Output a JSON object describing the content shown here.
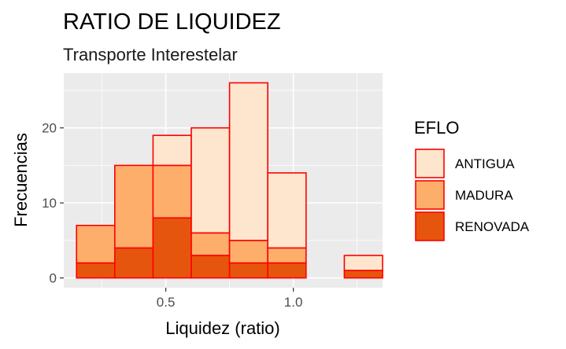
{
  "chart_data": {
    "type": "bar",
    "title": "RATIO DE LIQUIDEZ",
    "subtitle": "Transporte Interestelar",
    "xlabel": "Liquidez (ratio)",
    "ylabel": "Frecuencias",
    "xlim": [
      0.1,
      1.35
    ],
    "ylim": [
      -1.3,
      27.3
    ],
    "x_ticks": [
      0.5,
      1.0
    ],
    "x_tick_labels": [
      "0.5",
      "1.0"
    ],
    "y_ticks": [
      0,
      10,
      20
    ],
    "y_tick_labels": [
      "0",
      "10",
      "20"
    ],
    "grid": true,
    "stacked": true,
    "bin_edges": [
      0.15,
      0.3,
      0.45,
      0.6,
      0.75,
      0.9,
      1.05,
      1.2,
      1.35
    ],
    "bar_outline_color": "#ff0000",
    "series": [
      {
        "name": "RENOVADA",
        "color": "#e6550d",
        "values": [
          2,
          4,
          8,
          3,
          2,
          2,
          0,
          1
        ]
      },
      {
        "name": "MADURA",
        "color": "#fdae6b",
        "values": [
          5,
          11,
          7,
          3,
          3,
          2,
          0,
          0
        ]
      },
      {
        "name": "ANTIGUA",
        "color": "#fee6ce",
        "values": [
          0,
          0,
          4,
          14,
          21,
          10,
          0,
          2
        ]
      }
    ],
    "legend": {
      "title": "EFLO",
      "position": "right",
      "entries": [
        "ANTIGUA",
        "MADURA",
        "RENOVADA"
      ]
    }
  }
}
